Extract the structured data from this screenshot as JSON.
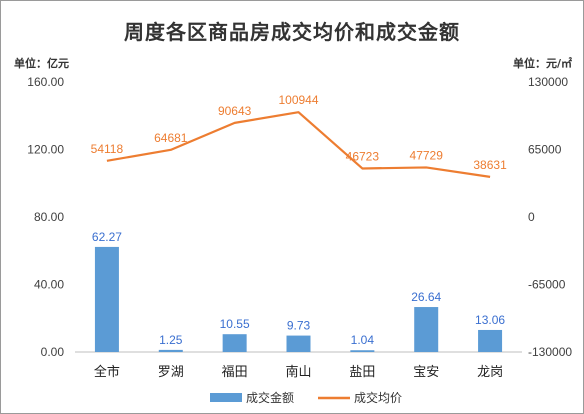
{
  "chart_data": {
    "type": "bar+line",
    "title": "周度各区商品房成交均价和成交金额",
    "left_unit": "单位：亿元",
    "right_unit": "单位：元/㎡",
    "categories": [
      "全市",
      "罗湖",
      "福田",
      "南山",
      "盐田",
      "宝安",
      "龙岗"
    ],
    "series": [
      {
        "name": "成交金额",
        "type": "bar",
        "axis": "left",
        "color": "#5b9bd5",
        "values": [
          62.27,
          1.25,
          10.55,
          9.73,
          1.04,
          26.64,
          13.06
        ],
        "labels": [
          "62.27",
          "1.25",
          "10.55",
          "9.73",
          "1.04",
          "26.64",
          "13.06"
        ]
      },
      {
        "name": "成交均价",
        "type": "line",
        "axis": "right",
        "color": "#ed7d31",
        "values": [
          54118,
          64681,
          90643,
          100944,
          46723,
          47729,
          38631
        ],
        "labels": [
          "54118",
          "64681",
          "90643",
          "100944",
          "46723",
          "47729",
          "38631"
        ]
      }
    ],
    "y_left": {
      "min": 0,
      "max": 160,
      "ticks": [
        0,
        40,
        80,
        120,
        160
      ],
      "tick_labels": [
        "0.00",
        "40.00",
        "80.00",
        "120.00",
        "160.00"
      ]
    },
    "y_right": {
      "min": -130000,
      "max": 130000,
      "ticks": [
        -130000,
        -65000,
        0,
        65000,
        130000
      ],
      "tick_labels": [
        "-130000",
        "-65000",
        "0",
        "65000",
        "130000"
      ]
    },
    "grid": false,
    "legend_position": "bottom"
  }
}
